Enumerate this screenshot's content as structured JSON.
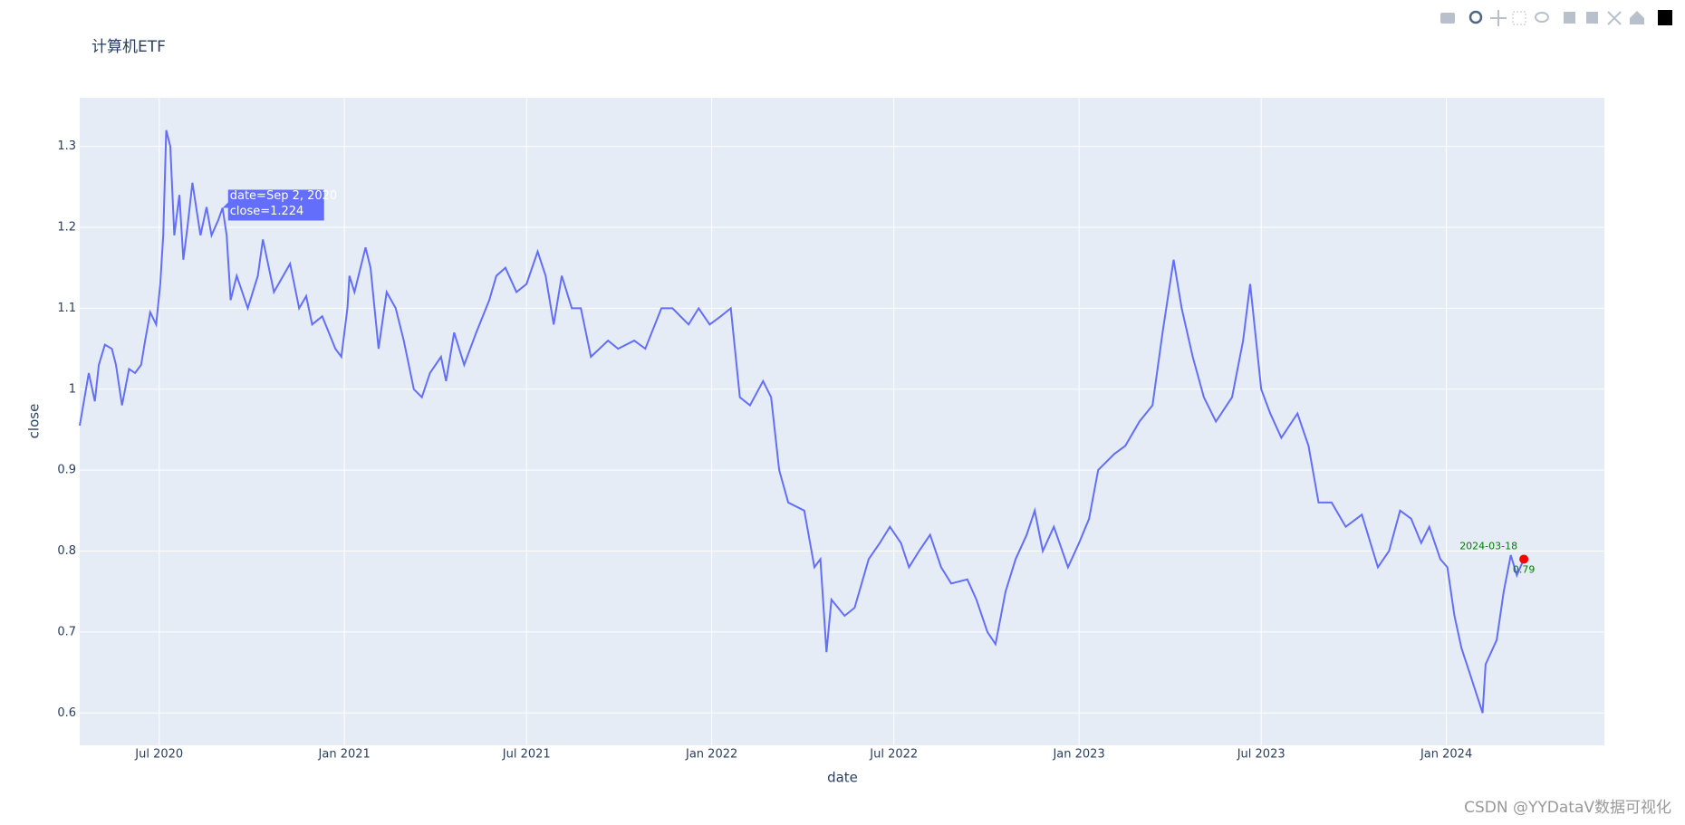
{
  "chart_data": {
    "type": "line",
    "title": "计算机ETF",
    "x_label": "date",
    "y_label": "close",
    "color": "#636efa",
    "background": "#e5ecf6",
    "grid": true,
    "xlim": [
      "2020-04-13",
      "2024-06-06"
    ],
    "xticks": [
      {
        "value": "2020-07-01",
        "label": "Jul 2020"
      },
      {
        "value": "2021-01-01",
        "label": "Jan 2021"
      },
      {
        "value": "2021-07-01",
        "label": "Jul 2021"
      },
      {
        "value": "2022-01-01",
        "label": "Jan 2022"
      },
      {
        "value": "2022-07-01",
        "label": "Jul 2022"
      },
      {
        "value": "2023-01-01",
        "label": "Jan 2023"
      },
      {
        "value": "2023-07-01",
        "label": "Jul 2023"
      },
      {
        "value": "2024-01-01",
        "label": "Jan 2024"
      }
    ],
    "ylim": [
      0.56,
      1.36
    ],
    "yticks": [
      0.6,
      0.7,
      0.8,
      0.9,
      1,
      1.1,
      1.2,
      1.3
    ],
    "x": [
      "2020-04-13",
      "2020-04-22",
      "2020-04-28",
      "2020-05-02",
      "2020-05-08",
      "2020-05-15",
      "2020-05-19",
      "2020-05-25",
      "2020-06-01",
      "2020-06-07",
      "2020-06-13",
      "2020-06-17",
      "2020-06-22",
      "2020-06-28",
      "2020-07-02",
      "2020-07-05",
      "2020-07-08",
      "2020-07-12",
      "2020-07-16",
      "2020-07-21",
      "2020-07-25",
      "2020-07-29",
      "2020-08-03",
      "2020-08-11",
      "2020-08-17",
      "2020-08-22",
      "2020-08-29",
      "2020-09-02",
      "2020-09-06",
      "2020-09-10",
      "2020-09-16",
      "2020-09-27",
      "2020-10-07",
      "2020-10-12",
      "2020-10-23",
      "2020-11-08",
      "2020-11-17",
      "2020-11-24",
      "2020-11-30",
      "2020-12-10",
      "2020-12-23",
      "2020-12-29",
      "2021-01-04",
      "2021-01-06",
      "2021-01-11",
      "2021-01-22",
      "2021-01-27",
      "2021-02-04",
      "2021-02-12",
      "2021-02-21",
      "2021-03-01",
      "2021-03-11",
      "2021-03-19",
      "2021-03-27",
      "2021-04-07",
      "2021-04-12",
      "2021-04-20",
      "2021-04-30",
      "2021-05-12",
      "2021-05-25",
      "2021-06-01",
      "2021-06-10",
      "2021-06-21",
      "2021-07-01",
      "2021-07-12",
      "2021-07-20",
      "2021-07-28",
      "2021-08-05",
      "2021-08-15",
      "2021-08-24",
      "2021-09-03",
      "2021-09-20",
      "2021-09-30",
      "2021-10-16",
      "2021-10-27",
      "2021-11-12",
      "2021-11-23",
      "2021-12-09",
      "2021-12-19",
      "2021-12-30",
      "2022-01-10",
      "2022-01-20",
      "2022-01-29",
      "2022-02-08",
      "2022-02-21",
      "2022-03-01",
      "2022-03-09",
      "2022-03-18",
      "2022-04-03",
      "2022-04-13",
      "2022-04-19",
      "2022-04-25",
      "2022-04-30",
      "2022-05-13",
      "2022-05-23",
      "2022-06-06",
      "2022-06-17",
      "2022-06-27",
      "2022-07-08",
      "2022-07-16",
      "2022-07-26",
      "2022-08-06",
      "2022-08-17",
      "2022-08-27",
      "2022-09-12",
      "2022-09-21",
      "2022-10-02",
      "2022-10-10",
      "2022-10-20",
      "2022-10-30",
      "2022-11-10",
      "2022-11-18",
      "2022-11-26",
      "2022-12-07",
      "2022-12-21",
      "2023-01-01",
      "2023-01-11",
      "2023-01-20",
      "2023-02-05",
      "2023-02-16",
      "2023-03-02",
      "2023-03-15",
      "2023-03-25",
      "2023-04-05",
      "2023-04-13",
      "2023-04-24",
      "2023-05-05",
      "2023-05-17",
      "2023-06-02",
      "2023-06-13",
      "2023-06-20",
      "2023-07-01",
      "2023-07-10",
      "2023-07-21",
      "2023-08-06",
      "2023-08-17",
      "2023-08-27",
      "2023-09-09",
      "2023-09-23",
      "2023-10-09",
      "2023-10-25",
      "2023-11-05",
      "2023-11-16",
      "2023-11-27",
      "2023-12-07",
      "2023-12-15",
      "2023-12-26",
      "2024-01-02",
      "2024-01-09",
      "2024-01-16",
      "2024-01-24",
      "2024-02-06",
      "2024-02-09",
      "2024-02-20",
      "2024-02-27",
      "2024-03-05",
      "2024-03-11",
      "2024-03-18"
    ],
    "values": [
      0.955,
      1.02,
      0.985,
      1.03,
      1.055,
      1.05,
      1.03,
      0.98,
      1.025,
      1.02,
      1.03,
      1.06,
      1.095,
      1.08,
      1.13,
      1.19,
      1.32,
      1.3,
      1.19,
      1.24,
      1.16,
      1.2,
      1.255,
      1.19,
      1.225,
      1.19,
      1.21,
      1.224,
      1.19,
      1.11,
      1.14,
      1.1,
      1.14,
      1.185,
      1.12,
      1.155,
      1.1,
      1.115,
      1.08,
      1.09,
      1.05,
      1.04,
      1.1,
      1.14,
      1.12,
      1.175,
      1.15,
      1.05,
      1.12,
      1.1,
      1.06,
      1,
      0.99,
      1.02,
      1.04,
      1.01,
      1.07,
      1.03,
      1.07,
      1.11,
      1.14,
      1.15,
      1.12,
      1.13,
      1.17,
      1.14,
      1.08,
      1.14,
      1.1,
      1.1,
      1.04,
      1.06,
      1.05,
      1.06,
      1.05,
      1.1,
      1.1,
      1.08,
      1.1,
      1.08,
      1.09,
      1.1,
      0.99,
      0.98,
      1.01,
      0.99,
      0.9,
      0.86,
      0.85,
      0.78,
      0.79,
      0.675,
      0.74,
      0.72,
      0.73,
      0.79,
      0.81,
      0.83,
      0.81,
      0.78,
      0.8,
      0.82,
      0.78,
      0.76,
      0.765,
      0.74,
      0.7,
      0.685,
      0.75,
      0.79,
      0.82,
      0.85,
      0.8,
      0.83,
      0.78,
      0.81,
      0.84,
      0.9,
      0.92,
      0.93,
      0.96,
      0.98,
      1.07,
      1.16,
      1.1,
      1.04,
      0.99,
      0.96,
      0.99,
      1.06,
      1.13,
      1,
      0.97,
      0.94,
      0.97,
      0.93,
      0.86,
      0.86,
      0.83,
      0.845,
      0.78,
      0.8,
      0.85,
      0.84,
      0.81,
      0.83,
      0.79,
      0.78,
      0.72,
      0.68,
      0.65,
      0.6,
      0.66,
      0.69,
      0.75,
      0.795,
      0.77,
      0.79
    ],
    "marker": {
      "x": "2024-03-18",
      "y": 0.79,
      "color": "red"
    },
    "tooltip": {
      "x": "2020-09-02",
      "y": 1.224,
      "lines": [
        "date=Sep 2, 2020",
        "close=1.224"
      ]
    }
  },
  "watermark": "CSDN @YYDataV数据可视化"
}
